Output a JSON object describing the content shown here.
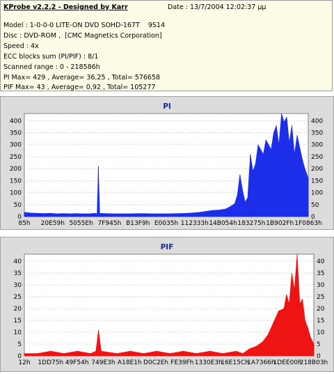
{
  "header": {
    "title": "KProbe v2.2.2 - Designed by Karr",
    "date": "Date : 13/7/2004 12:02:37 μμ",
    "lines": [
      "Model : 1-0-0-0 LITE-ON DVD SOHD-167T    9S14",
      "Disc : DVD-ROM ,  [CMC Magnetics Corporation]",
      "Speed : 4x",
      "ECC blocks sum (PI/PIF) : 8/1",
      "Scanned range : 0 - 218586h",
      "PI Max= 429 , Average= 36,25 , Total= 576658",
      "PIF Max= 43 , Average= 0,92 , Total= 105277"
    ]
  },
  "colors": {
    "info_bg": "#fbfbe6",
    "panel_bg": "#dcdcdc",
    "plot_bg": "#ffffff",
    "pi_series": "#1c2ee8",
    "pif_series": "#ee1414",
    "title_text": "#1a2a8a"
  },
  "chart_data": [
    {
      "type": "area",
      "title": "PI",
      "ylim": [
        0,
        430
      ],
      "yticks": [
        0,
        50,
        100,
        150,
        200,
        250,
        300,
        350,
        400
      ],
      "x_tick_labels": [
        "85h",
        "20E59h",
        "5055Eh",
        "7F945h",
        "B13F9h",
        "E0035h",
        "112333h",
        "14B054h",
        "183275h",
        "1B902Fh",
        "1F0863h"
      ],
      "xlim": [
        0,
        218586
      ],
      "grid": true,
      "series": [
        {
          "values_x": [
            0,
            5000,
            10000,
            15000,
            20000,
            25000,
            30000,
            35000,
            40000,
            45000,
            50000,
            54000,
            56000,
            57000,
            58000,
            62000,
            70000,
            80000,
            90000,
            100000,
            110000,
            120000,
            125000,
            130000,
            135000,
            140000,
            145000,
            150000,
            155000,
            158000,
            162000,
            164000,
            166000,
            168000,
            170000,
            172000,
            174000,
            176000,
            178000,
            180000,
            182000,
            184000,
            186000,
            188000,
            190000,
            192000,
            194000,
            196000,
            198000,
            200000,
            202000,
            204000,
            206000,
            208000,
            210000,
            212000,
            214000,
            216000,
            218586
          ],
          "values_y": [
            18,
            15,
            14,
            13,
            14,
            12,
            13,
            12,
            13,
            12,
            12,
            14,
            12,
            210,
            14,
            13,
            12,
            12,
            13,
            12,
            12,
            13,
            14,
            16,
            18,
            22,
            26,
            28,
            32,
            40,
            55,
            90,
            175,
            110,
            60,
            80,
            260,
            190,
            220,
            300,
            280,
            260,
            320,
            300,
            280,
            350,
            380,
            300,
            429,
            395,
            415,
            310,
            380,
            260,
            340,
            290,
            240,
            200,
            160
          ]
        }
      ]
    },
    {
      "type": "area",
      "title": "PIF",
      "ylim": [
        0,
        43
      ],
      "yticks": [
        0,
        5,
        10,
        15,
        20,
        25,
        30,
        35,
        40
      ],
      "x_tick_labels": [
        "12h",
        "1DD75h",
        "49F54h",
        "749E3h",
        "A18E1h",
        "D0C2Eh",
        "FE39Fh",
        "1330E3h",
        "16E15Ch",
        "1A7366h",
        "1DEE00h",
        "218B03h"
      ],
      "xlim": [
        0,
        218586
      ],
      "grid": true,
      "series": [
        {
          "values_x": [
            0,
            10000,
            20000,
            30000,
            40000,
            50000,
            54000,
            56000,
            58000,
            70000,
            80000,
            90000,
            100000,
            110000,
            120000,
            130000,
            140000,
            150000,
            160000,
            165000,
            170000,
            175000,
            180000,
            184000,
            188000,
            192000,
            196000,
            198000,
            200000,
            202000,
            204000,
            206000,
            208000,
            210000,
            212000,
            214000,
            216000,
            218586
          ],
          "values_y": [
            1,
            1,
            2,
            1,
            2,
            1,
            2,
            11,
            2,
            1,
            2,
            1,
            2,
            1,
            2,
            1,
            2,
            1,
            2,
            1,
            3,
            4,
            6,
            9,
            14,
            19,
            20,
            26,
            22,
            35,
            28,
            43,
            22,
            24,
            15,
            12,
            8,
            5
          ]
        }
      ]
    }
  ]
}
